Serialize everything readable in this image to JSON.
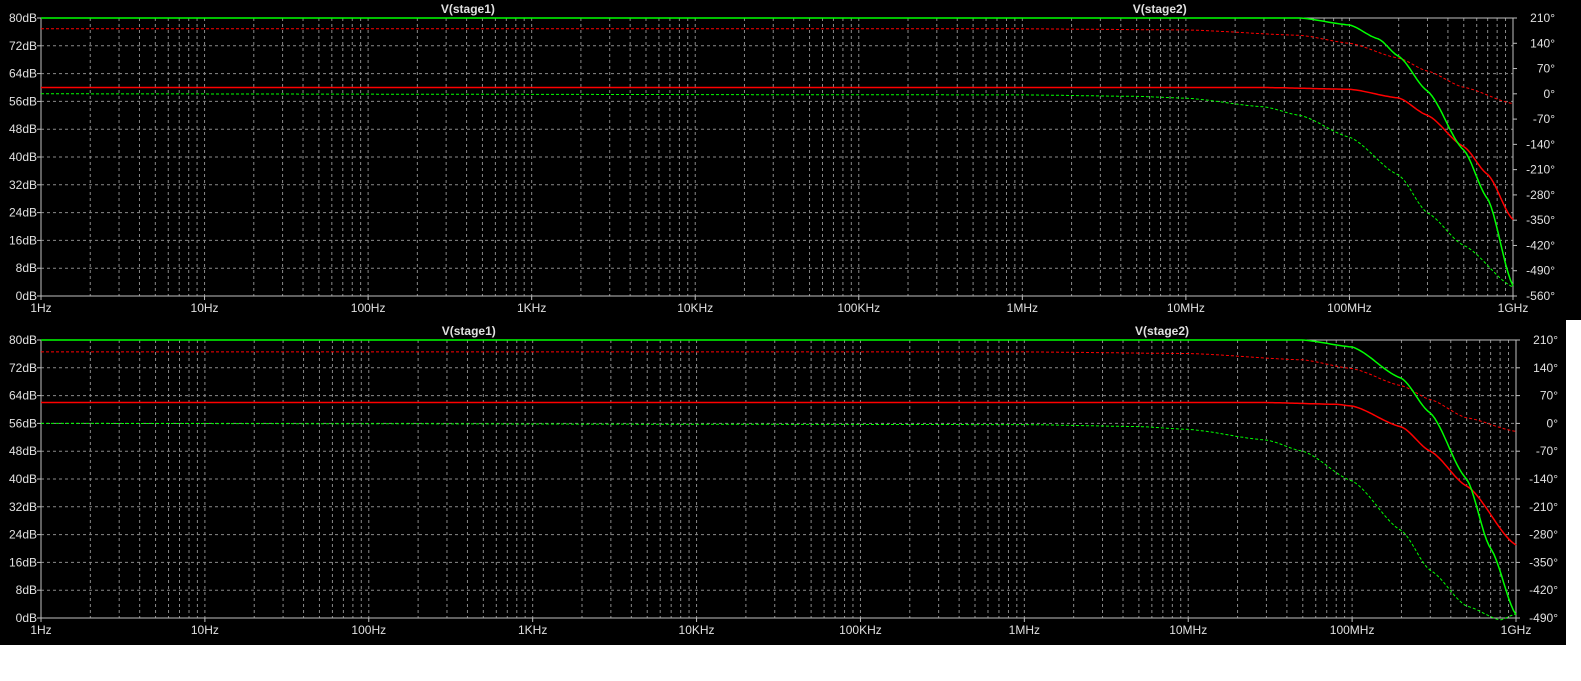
{
  "chart_data": [
    {
      "type": "line",
      "title": "",
      "x_scale": "log",
      "xlim": [
        1,
        1000000000
      ],
      "x_ticks": [
        "1Hz",
        "10Hz",
        "100Hz",
        "1KHz",
        "10KHz",
        "100KHz",
        "1MHz",
        "10MHz",
        "100MHz",
        "1GHz"
      ],
      "y_left_ticks": [
        "80dB",
        "72dB",
        "64dB",
        "56dB",
        "48dB",
        "40dB",
        "32dB",
        "24dB",
        "16dB",
        "8dB",
        "0dB"
      ],
      "y_left_lim": [
        0,
        80
      ],
      "y_right_ticks": [
        "210°",
        "140°",
        "70°",
        "0°",
        "-70°",
        "-140°",
        "-210°",
        "-280°",
        "-350°",
        "-420°",
        "-490°",
        "-560°"
      ],
      "y_right_lim": [
        -560,
        210
      ],
      "grid": true,
      "series": [
        {
          "name": "V(stage1)",
          "color": "#ff0000",
          "magnitude_db": {
            "x": [
              1,
              1000000,
              30000000,
              100000000,
              200000000,
              300000000,
              500000000,
              700000000,
              1000000000
            ],
            "y": [
              60,
              60,
              60,
              59.5,
              57,
              52,
              43,
              35,
              22
            ]
          },
          "phase_deg": {
            "x": [
              1,
              1000000,
              10000000,
              50000000,
              100000000,
              200000000,
              300000000,
              500000000,
              1000000000
            ],
            "y": [
              180,
              180,
              177,
              162,
              140,
              99,
              63,
              18,
              -27
            ]
          }
        },
        {
          "name": "V(stage2)",
          "color": "#00ff00",
          "magnitude_db": {
            "x": [
              1,
              50000000,
              100000000,
              150000000,
              200000000,
              300000000,
              500000000,
              700000000,
              1000000000
            ],
            "y": [
              80,
              80,
              78,
              74,
              69,
              59,
              42,
              28,
              3
            ]
          },
          "phase_deg": {
            "x": [
              1,
              1000000,
              5000000,
              10000000,
              30000000,
              50000000,
              100000000,
              200000000,
              300000000,
              500000000,
              1000000000
            ],
            "y": [
              0,
              -3,
              -7,
              -12,
              -36,
              -60,
              -120,
              -225,
              -330,
              -420,
              -535
            ]
          }
        }
      ]
    },
    {
      "type": "line",
      "title": "",
      "x_scale": "log",
      "xlim": [
        1,
        1000000000
      ],
      "x_ticks": [
        "1Hz",
        "10Hz",
        "100Hz",
        "1KHz",
        "10KHz",
        "100KHz",
        "1MHz",
        "10MHz",
        "100MHz",
        "1GHz"
      ],
      "y_left_ticks": [
        "80dB",
        "72dB",
        "64dB",
        "56dB",
        "48dB",
        "40dB",
        "32dB",
        "24dB",
        "16dB",
        "8dB",
        "0dB"
      ],
      "y_left_lim": [
        0,
        80
      ],
      "y_right_ticks": [
        "210°",
        "140°",
        "70°",
        "0°",
        "-70°",
        "-140°",
        "-210°",
        "-280°",
        "-350°",
        "-420°",
        "-490°"
      ],
      "y_right_lim": [
        -490,
        210
      ],
      "grid": true,
      "series": [
        {
          "name": "V(stage1)",
          "color": "#ff0000",
          "magnitude_db": {
            "x": [
              1,
              1000000,
              30000000,
              80000000,
              100000000,
              200000000,
              300000000,
              500000000,
              1000000000
            ],
            "y": [
              62,
              62,
              62,
              61.5,
              61,
              55,
              48,
              38,
              21
            ]
          },
          "phase_deg": {
            "x": [
              1,
              1000000,
              10000000,
              50000000,
              100000000,
              200000000,
              300000000,
              500000000,
              1000000000
            ],
            "y": [
              180,
              180,
              176,
              160,
              138,
              95,
              60,
              14,
              -20
            ]
          }
        },
        {
          "name": "V(stage2)",
          "color": "#00ff00",
          "magnitude_db": {
            "x": [
              1,
              50000000,
              100000000,
              200000000,
              300000000,
              500000000,
              700000000,
              1000000000
            ],
            "y": [
              80,
              80,
              78,
              69,
              59,
              40,
              20,
              1
            ]
          },
          "phase_deg": {
            "x": [
              1,
              1000000,
              5000000,
              10000000,
              30000000,
              50000000,
              100000000,
              200000000,
              300000000,
              500000000,
              800000000,
              1000000000
            ],
            "y": [
              0,
              -3,
              -8,
              -15,
              -42,
              -70,
              -145,
              -270,
              -370,
              -460,
              -495,
              -480
            ]
          }
        }
      ]
    }
  ]
}
